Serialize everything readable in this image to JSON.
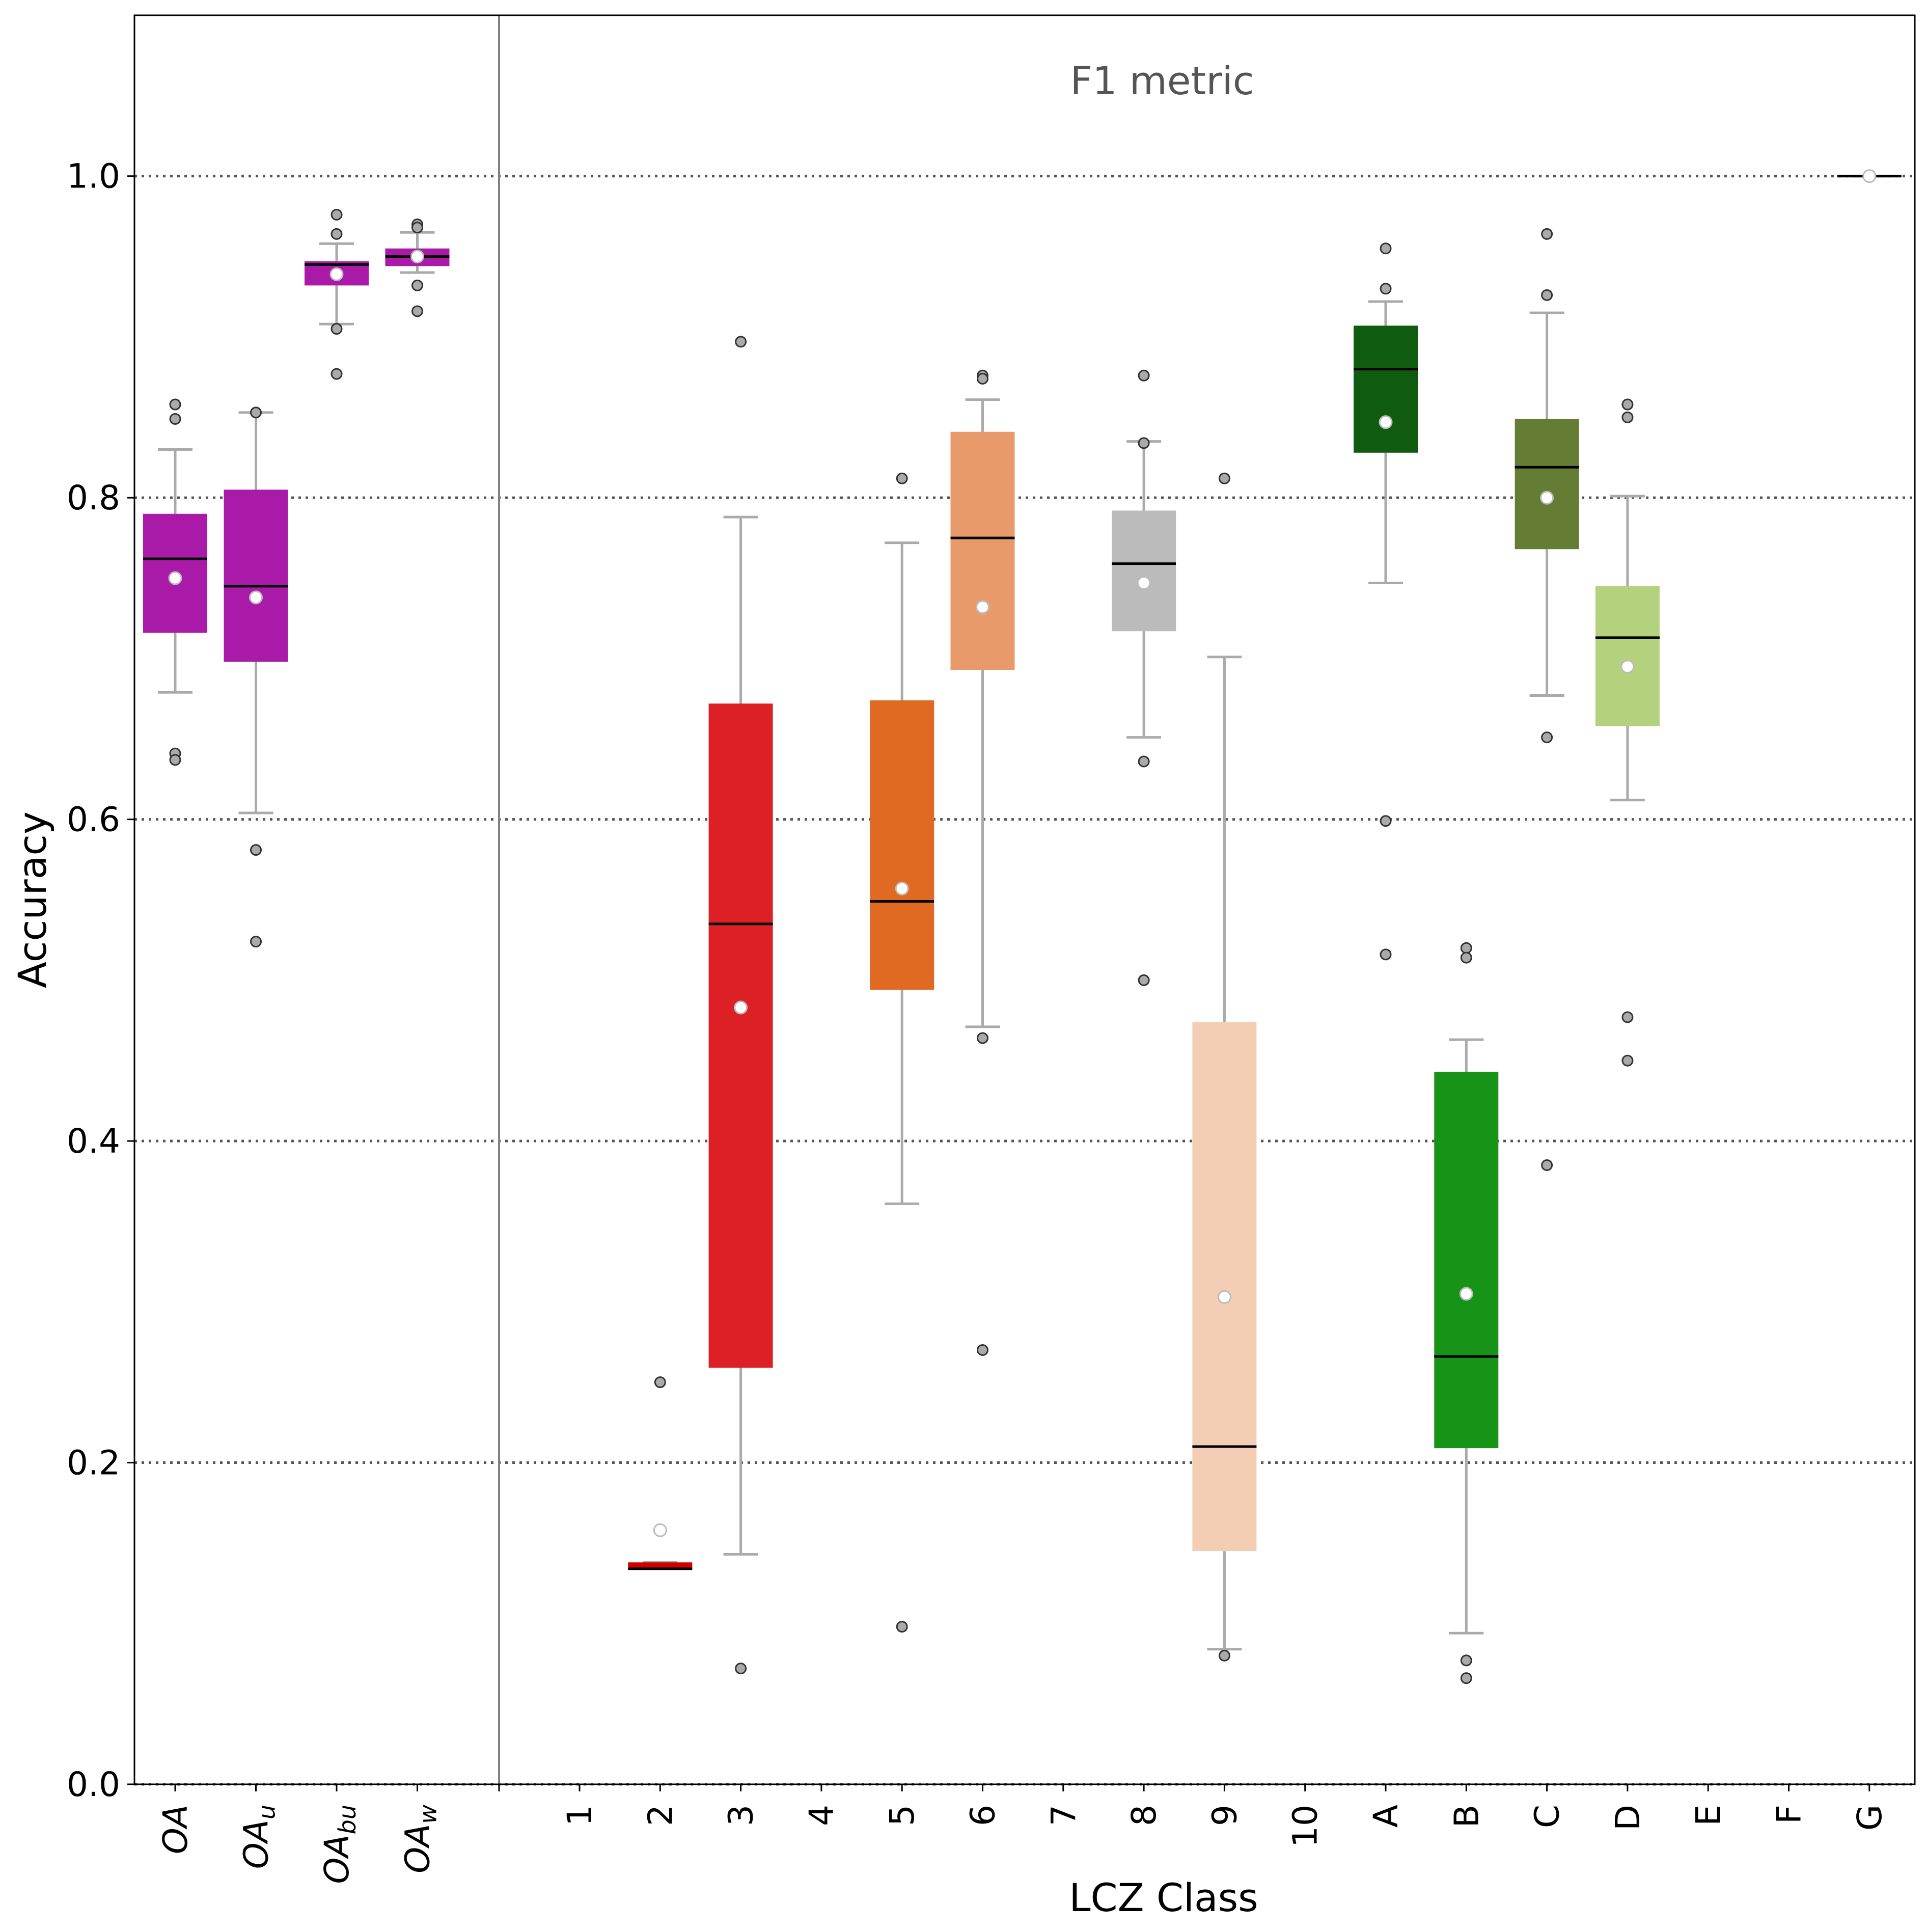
{
  "chart_data": {
    "type": "box",
    "annotation": "F1 metric",
    "xlabel": "LCZ Class",
    "ylabel": "Accuracy",
    "ylim": [
      0.0,
      1.1
    ],
    "yticks": [
      "0.0",
      "0.2",
      "0.4",
      "0.6",
      "0.8",
      "1.0"
    ],
    "grid": "horizontal dotted",
    "colors": {
      "whisker": "#aaaaaa",
      "median": "#000000",
      "mean_fill": "#ffffff",
      "outlier_fill": "#aaaaaa",
      "grid": "#555555",
      "divider": "#808080"
    },
    "groups": [
      {
        "name": "overall",
        "categories": [
          {
            "label": "OA",
            "base": "OA",
            "sub": "",
            "color": "#a91aa9",
            "box": {
              "q1": 0.716,
              "median": 0.762,
              "q3": 0.79,
              "whislo": 0.679,
              "whishi": 0.83,
              "mean": 0.75
            },
            "outliers": [
              0.858,
              0.849,
              0.641,
              0.637
            ]
          },
          {
            "label": "OA_u",
            "base": "OA",
            "sub": "u",
            "color": "#a91aa9",
            "box": {
              "q1": 0.698,
              "median": 0.745,
              "q3": 0.805,
              "whislo": 0.604,
              "whishi": 0.853,
              "mean": 0.738
            },
            "outliers": [
              0.853,
              0.581,
              0.524
            ]
          },
          {
            "label": "OA_bu",
            "base": "OA",
            "sub": "bu",
            "color": "#a91aa9",
            "box": {
              "q1": 0.932,
              "median": 0.945,
              "q3": 0.947,
              "whislo": 0.908,
              "whishi": 0.958,
              "mean": 0.939
            },
            "outliers": [
              0.976,
              0.964,
              0.905,
              0.877
            ]
          },
          {
            "label": "OA_w",
            "base": "OA",
            "sub": "w",
            "color": "#a91aa9",
            "box": {
              "q1": 0.944,
              "median": 0.95,
              "q3": 0.955,
              "whislo": 0.94,
              "whishi": 0.965,
              "mean": 0.95
            },
            "outliers": [
              0.97,
              0.968,
              0.932,
              0.916
            ]
          }
        ]
      },
      {
        "name": "lcz",
        "categories": [
          {
            "label": "1",
            "color": "#8c0000",
            "box": null,
            "outliers": []
          },
          {
            "label": "2",
            "color": "#d10000",
            "box": {
              "q1": 0.134,
              "median": 0.134,
              "q3": 0.138,
              "whislo": 0.134,
              "whishi": 0.138,
              "mean": 0.158
            },
            "outliers": [
              0.25
            ]
          },
          {
            "label": "3",
            "color": "#dd2025",
            "box": {
              "q1": 0.259,
              "median": 0.535,
              "q3": 0.672,
              "whislo": 0.143,
              "whishi": 0.788,
              "mean": 0.483
            },
            "outliers": [
              0.897,
              0.072
            ]
          },
          {
            "label": "4",
            "color": "#bf4d00",
            "box": null,
            "outliers": []
          },
          {
            "label": "5",
            "color": "#e06a22",
            "box": {
              "q1": 0.494,
              "median": 0.549,
              "q3": 0.674,
              "whislo": 0.361,
              "whishi": 0.772,
              "mean": 0.557
            },
            "outliers": [
              0.812,
              0.098
            ]
          },
          {
            "label": "6",
            "color": "#e99a6b",
            "box": {
              "q1": 0.693,
              "median": 0.775,
              "q3": 0.841,
              "whislo": 0.471,
              "whishi": 0.861,
              "mean": 0.732
            },
            "outliers": [
              0.876,
              0.874,
              0.464,
              0.27
            ]
          },
          {
            "label": "7",
            "color": "#ffff00",
            "box": null,
            "outliers": []
          },
          {
            "label": "8",
            "color": "#bbbbbb",
            "box": {
              "q1": 0.717,
              "median": 0.759,
              "q3": 0.792,
              "whislo": 0.651,
              "whishi": 0.835,
              "mean": 0.747
            },
            "outliers": [
              0.876,
              0.834,
              0.636,
              0.5
            ]
          },
          {
            "label": "9",
            "color": "#f4ceb4",
            "box": {
              "q1": 0.145,
              "median": 0.21,
              "q3": 0.474,
              "whislo": 0.084,
              "whishi": 0.701,
              "mean": 0.303
            },
            "outliers": [
              0.812,
              0.08
            ]
          },
          {
            "label": "10",
            "color": "#555555",
            "box": null,
            "outliers": []
          },
          {
            "label": "A",
            "color": "#0f5b0f",
            "box": {
              "q1": 0.828,
              "median": 0.88,
              "q3": 0.907,
              "whislo": 0.747,
              "whishi": 0.922,
              "mean": 0.847
            },
            "outliers": [
              0.955,
              0.93,
              0.599,
              0.516
            ]
          },
          {
            "label": "B",
            "color": "#179418",
            "box": {
              "q1": 0.209,
              "median": 0.266,
              "q3": 0.443,
              "whislo": 0.094,
              "whishi": 0.463,
              "mean": 0.305
            },
            "outliers": [
              0.52,
              0.514,
              0.077,
              0.066
            ]
          },
          {
            "label": "C",
            "color": "#647c34",
            "box": {
              "q1": 0.768,
              "median": 0.819,
              "q3": 0.849,
              "whislo": 0.677,
              "whishi": 0.915,
              "mean": 0.8
            },
            "outliers": [
              0.964,
              0.926,
              0.651,
              0.385
            ]
          },
          {
            "label": "D",
            "color": "#b4d17e",
            "box": {
              "q1": 0.658,
              "median": 0.713,
              "q3": 0.745,
              "whislo": 0.612,
              "whishi": 0.801,
              "mean": 0.695
            },
            "outliers": [
              0.858,
              0.85,
              0.477,
              0.45
            ]
          },
          {
            "label": "E",
            "color": "#000000",
            "box": null,
            "outliers": []
          },
          {
            "label": "F",
            "color": "#fbf7ae",
            "box": null,
            "outliers": []
          },
          {
            "label": "G",
            "color": "#6a6afd",
            "box": {
              "q1": 1.0,
              "median": 1.0,
              "q3": 1.0,
              "whislo": 1.0,
              "whishi": 1.0,
              "mean": 1.0
            },
            "outliers": []
          }
        ]
      }
    ]
  }
}
